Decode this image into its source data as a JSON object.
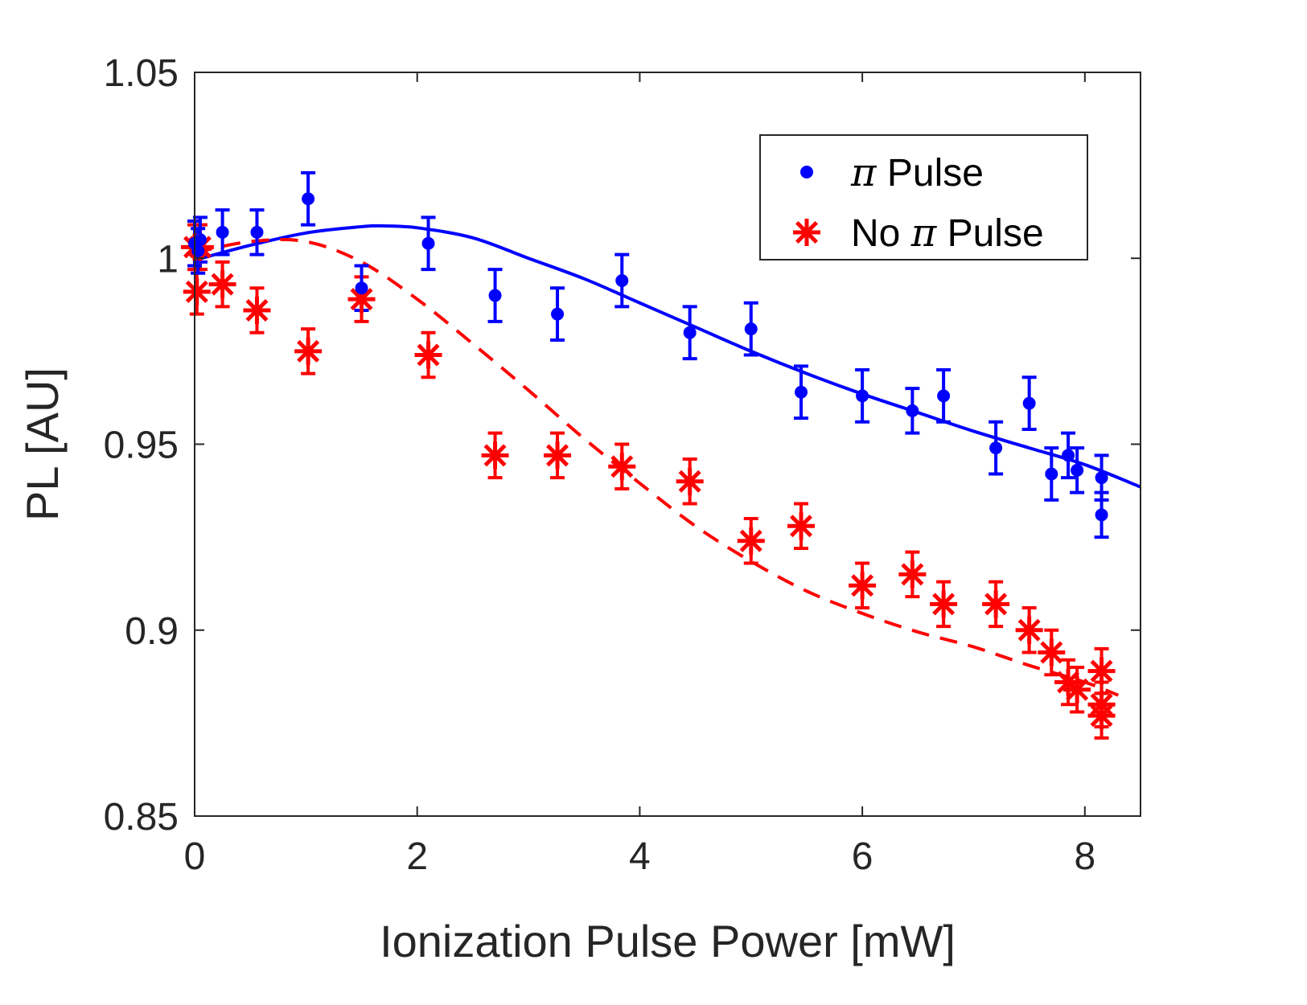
{
  "chart_data": {
    "type": "scatter",
    "xlabel": "Ionization Pulse Power [mW]",
    "ylabel": "PL [AU]",
    "xlim": [
      0,
      8.5
    ],
    "ylim": [
      0.85,
      1.05
    ],
    "xticks": [
      0,
      2,
      4,
      6,
      8
    ],
    "xtick_labels": [
      "0",
      "2",
      "4",
      "6",
      "8"
    ],
    "yticks": [
      0.85,
      0.9,
      0.95,
      1.0,
      1.05
    ],
    "ytick_labels": [
      "0.85",
      "0.9",
      "0.95",
      "1",
      "1.05"
    ],
    "grid": false,
    "legend_position": "top-right",
    "legend": [
      {
        "label_pre": "",
        "symbol": "π",
        "label_post": " Pulse",
        "marker": "dot",
        "color": "#0000ff"
      },
      {
        "label_pre": "No ",
        "symbol": "π",
        "label_post": " Pulse",
        "marker": "asterisk",
        "color": "#ff0000"
      }
    ],
    "series": [
      {
        "name": "π Pulse",
        "color": "#0000ff",
        "marker": "dot",
        "points": [
          {
            "x": 0.0,
            "y": 1.004,
            "err": 0.006
          },
          {
            "x": 0.03,
            "y": 1.002,
            "err": 0.006
          },
          {
            "x": 0.05,
            "y": 1.005,
            "err": 0.006
          },
          {
            "x": 0.25,
            "y": 1.007,
            "err": 0.006
          },
          {
            "x": 0.56,
            "y": 1.007,
            "err": 0.006
          },
          {
            "x": 1.02,
            "y": 1.016,
            "err": 0.007
          },
          {
            "x": 1.5,
            "y": 0.992,
            "err": 0.006
          },
          {
            "x": 2.1,
            "y": 1.004,
            "err": 0.007
          },
          {
            "x": 2.7,
            "y": 0.99,
            "err": 0.007
          },
          {
            "x": 3.26,
            "y": 0.985,
            "err": 0.007
          },
          {
            "x": 3.84,
            "y": 0.994,
            "err": 0.007
          },
          {
            "x": 4.45,
            "y": 0.98,
            "err": 0.007
          },
          {
            "x": 5.0,
            "y": 0.981,
            "err": 0.007
          },
          {
            "x": 5.45,
            "y": 0.964,
            "err": 0.007
          },
          {
            "x": 6.0,
            "y": 0.963,
            "err": 0.007
          },
          {
            "x": 6.45,
            "y": 0.959,
            "err": 0.006
          },
          {
            "x": 6.73,
            "y": 0.963,
            "err": 0.007
          },
          {
            "x": 7.2,
            "y": 0.949,
            "err": 0.007
          },
          {
            "x": 7.5,
            "y": 0.961,
            "err": 0.007
          },
          {
            "x": 7.7,
            "y": 0.942,
            "err": 0.007
          },
          {
            "x": 7.85,
            "y": 0.947,
            "err": 0.006
          },
          {
            "x": 7.93,
            "y": 0.943,
            "err": 0.006
          },
          {
            "x": 8.15,
            "y": 0.941,
            "err": 0.006
          },
          {
            "x": 8.15,
            "y": 0.931,
            "err": 0.006
          }
        ]
      },
      {
        "name": "No π Pulse",
        "color": "#ff0000",
        "marker": "asterisk",
        "points": [
          {
            "x": 0.0,
            "y": 1.003,
            "err": 0.006
          },
          {
            "x": 0.02,
            "y": 0.991,
            "err": 0.006
          },
          {
            "x": 0.05,
            "y": 1.003,
            "err": 0.006
          },
          {
            "x": 0.25,
            "y": 0.993,
            "err": 0.006
          },
          {
            "x": 0.56,
            "y": 0.986,
            "err": 0.006
          },
          {
            "x": 1.02,
            "y": 0.975,
            "err": 0.006
          },
          {
            "x": 1.5,
            "y": 0.989,
            "err": 0.006
          },
          {
            "x": 2.1,
            "y": 0.974,
            "err": 0.006
          },
          {
            "x": 2.7,
            "y": 0.947,
            "err": 0.006
          },
          {
            "x": 3.26,
            "y": 0.947,
            "err": 0.006
          },
          {
            "x": 3.84,
            "y": 0.944,
            "err": 0.006
          },
          {
            "x": 4.45,
            "y": 0.94,
            "err": 0.006
          },
          {
            "x": 5.0,
            "y": 0.924,
            "err": 0.006
          },
          {
            "x": 5.45,
            "y": 0.928,
            "err": 0.006
          },
          {
            "x": 6.0,
            "y": 0.912,
            "err": 0.006
          },
          {
            "x": 6.45,
            "y": 0.915,
            "err": 0.006
          },
          {
            "x": 6.73,
            "y": 0.907,
            "err": 0.006
          },
          {
            "x": 7.2,
            "y": 0.907,
            "err": 0.006
          },
          {
            "x": 7.5,
            "y": 0.9,
            "err": 0.006
          },
          {
            "x": 7.7,
            "y": 0.894,
            "err": 0.006
          },
          {
            "x": 7.85,
            "y": 0.886,
            "err": 0.006
          },
          {
            "x": 7.93,
            "y": 0.884,
            "err": 0.006
          },
          {
            "x": 8.15,
            "y": 0.889,
            "err": 0.006
          },
          {
            "x": 8.15,
            "y": 0.88,
            "err": 0.006
          },
          {
            "x": 8.15,
            "y": 0.877,
            "err": 0.006
          }
        ]
      }
    ],
    "fit_curves": [
      {
        "name": "π Pulse fit",
        "color": "#0000ff",
        "style": "solid",
        "x": [
          0,
          0.5,
          1.0,
          1.5,
          1.7,
          2.0,
          2.5,
          3.0,
          3.5,
          4.0,
          4.5,
          5.0,
          5.5,
          6.0,
          6.5,
          7.0,
          7.5,
          8.0,
          8.5
        ],
        "y": [
          0.9995,
          1.0035,
          1.0068,
          1.0085,
          1.0087,
          1.0082,
          1.0055,
          1.0,
          0.9945,
          0.988,
          0.9815,
          0.975,
          0.969,
          0.9635,
          0.9585,
          0.9535,
          0.949,
          0.9445,
          0.9385
        ]
      },
      {
        "name": "No π Pulse fit",
        "color": "#ff0000",
        "style": "dashed",
        "x": [
          0,
          0.5,
          1.0,
          1.5,
          2.0,
          2.5,
          3.0,
          3.5,
          4.0,
          4.5,
          5.0,
          5.5,
          6.0,
          6.5,
          7.0,
          7.5,
          8.0,
          8.3
        ],
        "y": [
          1.0015,
          1.0045,
          1.0045,
          0.999,
          0.989,
          0.977,
          0.9645,
          0.9515,
          0.9395,
          0.928,
          0.9185,
          0.9105,
          0.9045,
          0.8995,
          0.8955,
          0.8905,
          0.886,
          0.8825
        ]
      }
    ]
  }
}
